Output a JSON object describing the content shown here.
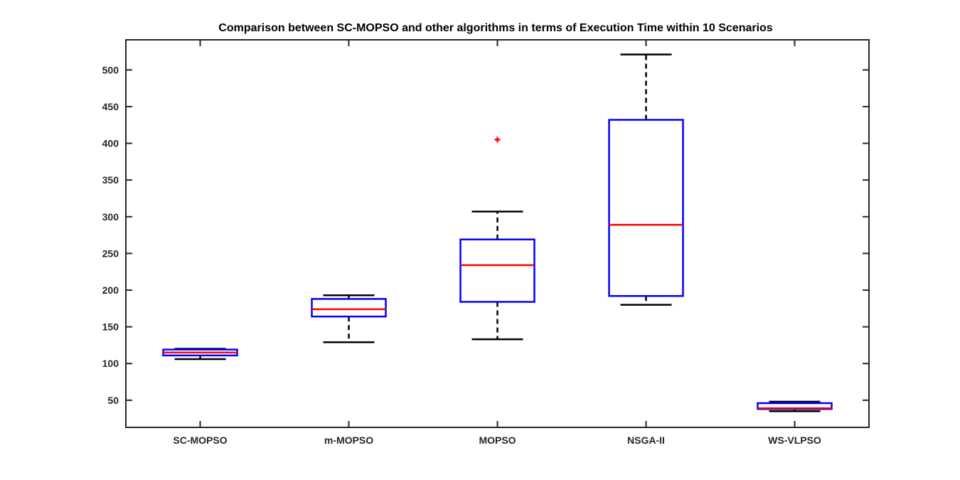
{
  "chart_data": {
    "type": "boxplot",
    "title": "Comparison between SC-MOPSO and other algorithms in terms of Execution Time within 10 Scenarios",
    "xlabel": "",
    "ylabel": "",
    "ylim": [
      13,
      541
    ],
    "yticks": [
      50,
      100,
      150,
      200,
      250,
      300,
      350,
      400,
      450,
      500
    ],
    "grid": false,
    "categories": [
      "SC-MOPSO",
      "m-MOPSO",
      "MOPSO",
      "NSGA-II",
      "WS-VLPSO"
    ],
    "boxes": [
      {
        "category": "SC-MOPSO",
        "whisker_low": 106,
        "q1": 111,
        "median": 115,
        "q3": 119,
        "whisker_high": 120,
        "outliers": []
      },
      {
        "category": "m-MOPSO",
        "whisker_low": 129,
        "q1": 164,
        "median": 174,
        "q3": 188,
        "whisker_high": 193,
        "outliers": []
      },
      {
        "category": "MOPSO",
        "whisker_low": 133,
        "q1": 184,
        "median": 234,
        "q3": 269,
        "whisker_high": 307,
        "outliers": [
          405
        ]
      },
      {
        "category": "NSGA-II",
        "whisker_low": 180,
        "q1": 192,
        "median": 289,
        "q3": 432,
        "whisker_high": 521,
        "outliers": []
      },
      {
        "category": "WS-VLPSO",
        "whisker_low": 35,
        "q1": 38,
        "median": 39,
        "q3": 46,
        "whisker_high": 48,
        "outliers": []
      }
    ],
    "colors": {
      "box": "#0000ff",
      "median": "#ff0000",
      "whisker": "#000000",
      "outlier": "#ff0000"
    }
  }
}
